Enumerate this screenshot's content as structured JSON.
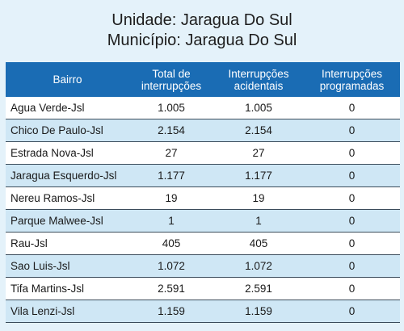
{
  "header": {
    "unidade": "Unidade: Jaragua Do Sul",
    "municipio": "Município: Jaragua Do Sul"
  },
  "table": {
    "columns": [
      "Bairro",
      "Total de interrupções",
      "Interrupções acidentais",
      "Interrupções programadas"
    ],
    "rows": [
      [
        "Agua Verde-Jsl",
        "1.005",
        "1.005",
        "0"
      ],
      [
        "Chico De Paulo-Jsl",
        "2.154",
        "2.154",
        "0"
      ],
      [
        "Estrada Nova-Jsl",
        "27",
        "27",
        "0"
      ],
      [
        "Jaragua Esquerdo-Jsl",
        "1.177",
        "1.177",
        "0"
      ],
      [
        "Nereu Ramos-Jsl",
        "19",
        "19",
        "0"
      ],
      [
        "Parque Malwee-Jsl",
        "1",
        "1",
        "0"
      ],
      [
        "Rau-Jsl",
        "405",
        "405",
        "0"
      ],
      [
        "Sao Luis-Jsl",
        "1.072",
        "1.072",
        "0"
      ],
      [
        "Tifa Martins-Jsl",
        "2.591",
        "2.591",
        "0"
      ],
      [
        "Vila Lenzi-Jsl",
        "1.159",
        "1.159",
        "0"
      ]
    ]
  }
}
